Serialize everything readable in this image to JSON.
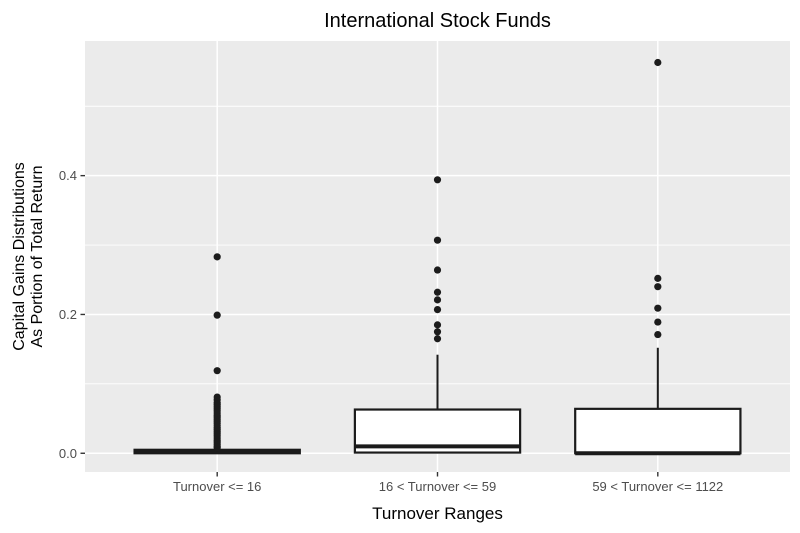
{
  "title": "International Stock Funds",
  "colors": {
    "panel_bg": "#EBEBEB",
    "grid_major": "#FFFFFF",
    "grid_minor": "#FFFFFF",
    "axis_tick_text": "#4D4D4D",
    "tick_mark": "#333333",
    "box_stroke": "#1B1B1B",
    "box_fill": "#FFFFFF",
    "point": "#1C1C1C",
    "title_color": "#000000"
  },
  "chart_data": {
    "type": "boxplot",
    "title": "International Stock Funds",
    "xlabel": "Turnover Ranges",
    "ylabel_lines": [
      "Capital Gains Distributions",
      "As Portion of Total Return"
    ],
    "categories": [
      "Turnover <= 16",
      "16 < Turnover <= 59",
      "59 < Turnover <= 1122"
    ],
    "y_ticks": [
      0.0,
      0.2,
      0.4
    ],
    "y_tick_labels": [
      "0.0",
      "0.2",
      "0.4"
    ],
    "y_minor_ticks": [
      0.1,
      0.3,
      0.5
    ],
    "ylim": [
      -0.027,
      0.594
    ],
    "grid": true,
    "legend": "none",
    "series": [
      {
        "category": "Turnover <= 16",
        "q1": 0.0,
        "median": 0.002,
        "q3": 0.005,
        "whisker_low": 0.0,
        "whisker_high": 0.006,
        "outliers": [
          0.008,
          0.01,
          0.013,
          0.016,
          0.019,
          0.022,
          0.025,
          0.028,
          0.031,
          0.034,
          0.037,
          0.04,
          0.043,
          0.046,
          0.049,
          0.052,
          0.055,
          0.058,
          0.061,
          0.064,
          0.067,
          0.07,
          0.073,
          0.077,
          0.081,
          0.119,
          0.199,
          0.283
        ]
      },
      {
        "category": "16 < Turnover <= 59",
        "q1": 0.001,
        "median": 0.01,
        "q3": 0.063,
        "whisker_low": 0.001,
        "whisker_high": 0.142,
        "outliers": [
          0.165,
          0.175,
          0.185,
          0.207,
          0.221,
          0.232,
          0.264,
          0.307,
          0.394
        ]
      },
      {
        "category": "59 < Turnover <= 1122",
        "q1": 0.0,
        "median": 0.0,
        "q3": 0.064,
        "whisker_low": 0.0,
        "whisker_high": 0.152,
        "outliers": [
          0.171,
          0.189,
          0.209,
          0.24,
          0.252,
          0.563
        ]
      }
    ]
  }
}
